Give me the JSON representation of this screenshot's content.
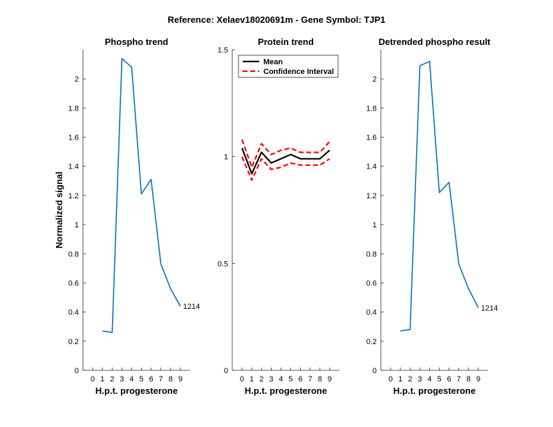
{
  "figure": {
    "title": "Reference:  Xelaev18020691m - Gene Symbol:  TJP1"
  },
  "colors": {
    "phospho_line": "#0072BD",
    "mean_line": "#000000",
    "ci_line": "#FF0000"
  },
  "chart_data": [
    {
      "type": "line",
      "title": "Phospho trend",
      "xlabel": "H.p.t. progesterone",
      "ylabel": "Normalized signal",
      "xlim": [
        -1,
        10
      ],
      "ylim": [
        0,
        2.2
      ],
      "xticks": [
        0,
        1,
        2,
        3,
        4,
        5,
        6,
        7,
        8,
        9
      ],
      "yticks": [
        0,
        0.2,
        0.4,
        0.6,
        0.8,
        1,
        1.2,
        1.4,
        1.6,
        1.8,
        2
      ],
      "ytick_labels": [
        "0",
        "0.2",
        "0.4",
        "0.6",
        "0.8",
        "1",
        "1.2",
        "1.4",
        "1.6",
        "1.8",
        "2"
      ],
      "series": [
        {
          "name": "phospho",
          "x": [
            1,
            2,
            3,
            4,
            5,
            6,
            7,
            8,
            9
          ],
          "values": [
            0.27,
            0.26,
            2.14,
            2.08,
            1.21,
            1.31,
            0.73,
            0.56,
            0.44
          ]
        }
      ],
      "annotation": {
        "text": "1214",
        "x": 9,
        "y": 0.44
      }
    },
    {
      "type": "line",
      "title": "Protein trend",
      "xlabel": "H.p.t. progesterone",
      "ylabel": "",
      "xlim": [
        -1,
        10
      ],
      "ylim": [
        0,
        1.5
      ],
      "xticks": [
        0,
        1,
        2,
        3,
        4,
        5,
        6,
        7,
        8,
        9
      ],
      "yticks": [
        0,
        0.5,
        1,
        1.5
      ],
      "ytick_labels": [
        "0",
        "0.5",
        "1",
        "1.5"
      ],
      "legend": [
        "Mean",
        "Confidence Interval"
      ],
      "legend_position": "top-right",
      "series": [
        {
          "name": "Mean",
          "x": [
            0,
            1,
            2,
            3,
            4,
            5,
            6,
            7,
            8,
            9
          ],
          "values": [
            1.04,
            0.92,
            1.02,
            0.97,
            0.99,
            1.01,
            0.99,
            0.99,
            0.99,
            1.03
          ]
        },
        {
          "name": "CI upper",
          "x": [
            0,
            1,
            2,
            3,
            4,
            5,
            6,
            7,
            8,
            9
          ],
          "values": [
            1.08,
            0.95,
            1.06,
            1.01,
            1.03,
            1.04,
            1.02,
            1.02,
            1.02,
            1.07
          ]
        },
        {
          "name": "CI lower",
          "x": [
            0,
            1,
            2,
            3,
            4,
            5,
            6,
            7,
            8,
            9
          ],
          "values": [
            1.0,
            0.89,
            0.99,
            0.94,
            0.95,
            0.97,
            0.96,
            0.96,
            0.96,
            0.99
          ]
        }
      ]
    },
    {
      "type": "line",
      "title": "Detrended phospho result",
      "xlabel": "H.p.t. progesterone",
      "ylabel": "",
      "xlim": [
        -1,
        10
      ],
      "ylim": [
        0,
        2.2
      ],
      "xticks": [
        0,
        1,
        2,
        3,
        4,
        5,
        6,
        7,
        8,
        9
      ],
      "yticks": [
        0,
        0.2,
        0.4,
        0.6,
        0.8,
        1,
        1.2,
        1.4,
        1.6,
        1.8,
        2
      ],
      "ytick_labels": [
        "0",
        "0.2",
        "0.4",
        "0.6",
        "0.8",
        "1",
        "1.2",
        "1.4",
        "1.6",
        "1.8",
        "2"
      ],
      "series": [
        {
          "name": "detrended",
          "x": [
            1,
            2,
            3,
            4,
            5,
            6,
            7,
            8,
            9
          ],
          "values": [
            0.27,
            0.28,
            2.09,
            2.12,
            1.22,
            1.29,
            0.73,
            0.56,
            0.43
          ]
        }
      ],
      "annotation": {
        "text": "1214",
        "x": 9,
        "y": 0.43
      }
    }
  ]
}
